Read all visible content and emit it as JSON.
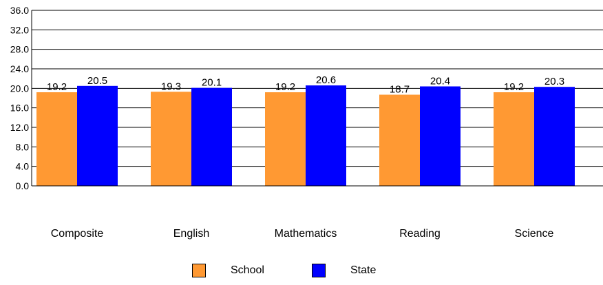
{
  "chart_data": {
    "type": "bar",
    "categories": [
      "Composite",
      "English",
      "Mathematics",
      "Reading",
      "Science"
    ],
    "series": [
      {
        "name": "School",
        "values": [
          19.2,
          19.3,
          19.2,
          18.7,
          19.2
        ],
        "color": "#FF9933"
      },
      {
        "name": "State",
        "values": [
          20.5,
          20.1,
          20.6,
          20.4,
          20.3
        ],
        "color": "#0000FF"
      }
    ],
    "ylim": [
      0,
      36
    ],
    "yticks": [
      "0.0",
      "4.0",
      "8.0",
      "12.0",
      "16.0",
      "20.0",
      "24.0",
      "28.0",
      "32.0",
      "36.0"
    ],
    "grid": true,
    "legend_position": "bottom"
  }
}
